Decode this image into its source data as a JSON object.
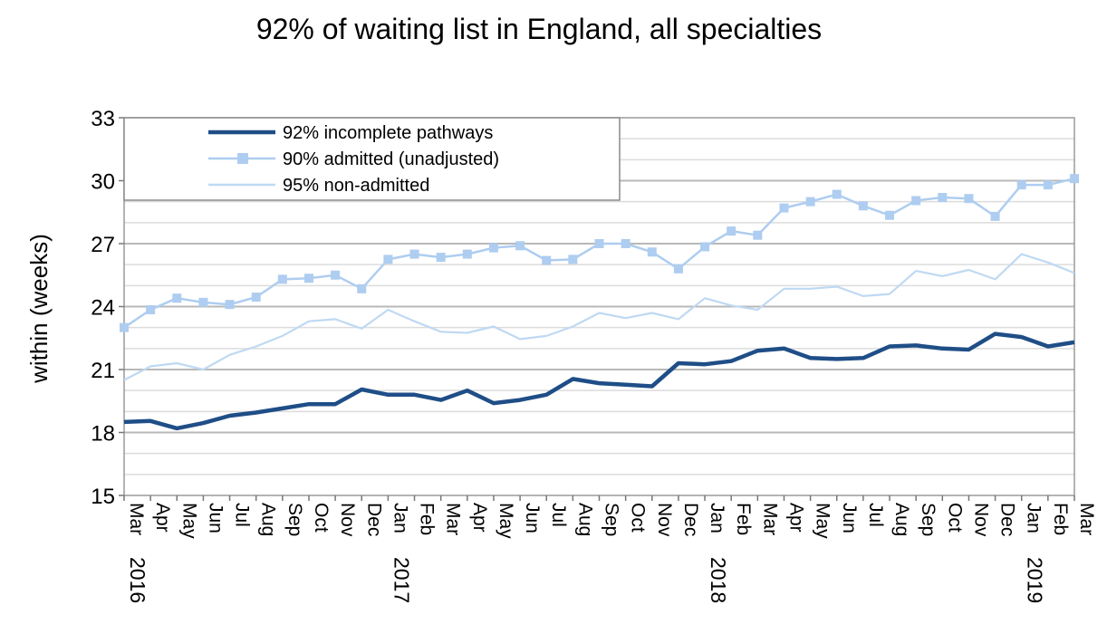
{
  "chart_data": {
    "type": "line",
    "title": "92% of waiting list in England, all specialties",
    "ylabel": "within  (weeks)",
    "xlabel": "",
    "ylim": [
      15,
      33
    ],
    "yticks": [
      15,
      18,
      21,
      24,
      27,
      30,
      33
    ],
    "grid": true,
    "legend_position": "top-left",
    "categories": [
      "Mar",
      "Apr",
      "May",
      "Jun",
      "Jul",
      "Aug",
      "Sep",
      "Oct",
      "Nov",
      "Dec",
      "Jan",
      "Feb",
      "Mar",
      "Apr",
      "May",
      "Jun",
      "Jul",
      "Aug",
      "Sep",
      "Oct",
      "Nov",
      "Dec",
      "Jan",
      "Feb",
      "Mar",
      "Apr",
      "May",
      "Jun",
      "Jul",
      "Aug",
      "Sep",
      "Oct",
      "Nov",
      "Dec",
      "Jan",
      "Feb",
      "Mar"
    ],
    "year_labels": [
      {
        "index": 0,
        "label": "2016"
      },
      {
        "index": 10,
        "label": "2017"
      },
      {
        "index": 22,
        "label": "2018"
      },
      {
        "index": 34,
        "label": "2019"
      }
    ],
    "series": [
      {
        "name": "92% incomplete pathways",
        "color": "#1f4e87",
        "marker": "none",
        "values": [
          18.5,
          18.55,
          18.2,
          18.45,
          18.8,
          18.95,
          19.15,
          19.35,
          19.35,
          20.05,
          19.8,
          19.8,
          19.55,
          20.0,
          19.4,
          19.55,
          19.8,
          20.55,
          20.35,
          20.28,
          20.2,
          21.3,
          21.25,
          21.4,
          21.9,
          22.0,
          21.55,
          21.5,
          21.55,
          22.1,
          22.15,
          22.0,
          21.95,
          22.7,
          22.55,
          22.1,
          22.3
        ]
      },
      {
        "name": "90% admitted (unadjusted)",
        "color": "#aecdf0",
        "marker": "square",
        "values": [
          23.0,
          23.85,
          24.4,
          24.2,
          24.1,
          24.45,
          25.3,
          25.35,
          25.5,
          24.85,
          26.25,
          26.5,
          26.35,
          26.5,
          26.8,
          26.9,
          26.2,
          26.25,
          27.0,
          27.0,
          26.6,
          25.8,
          26.85,
          27.6,
          27.4,
          28.7,
          29.0,
          29.35,
          28.8,
          28.35,
          29.05,
          29.2,
          29.15,
          28.3,
          29.8,
          29.8,
          30.1
        ]
      },
      {
        "name": "95% non-admitted",
        "color": "#bfd9f2",
        "marker": "none",
        "values": [
          20.5,
          21.15,
          21.3,
          21.0,
          21.7,
          22.1,
          22.6,
          23.3,
          23.4,
          22.95,
          23.85,
          23.3,
          22.8,
          22.75,
          23.05,
          22.45,
          22.6,
          23.05,
          23.7,
          23.45,
          23.7,
          23.4,
          24.4,
          24.05,
          23.85,
          24.85,
          24.85,
          24.95,
          24.5,
          24.6,
          25.7,
          25.45,
          25.75,
          25.3,
          26.5,
          26.1,
          25.6
        ]
      }
    ]
  }
}
